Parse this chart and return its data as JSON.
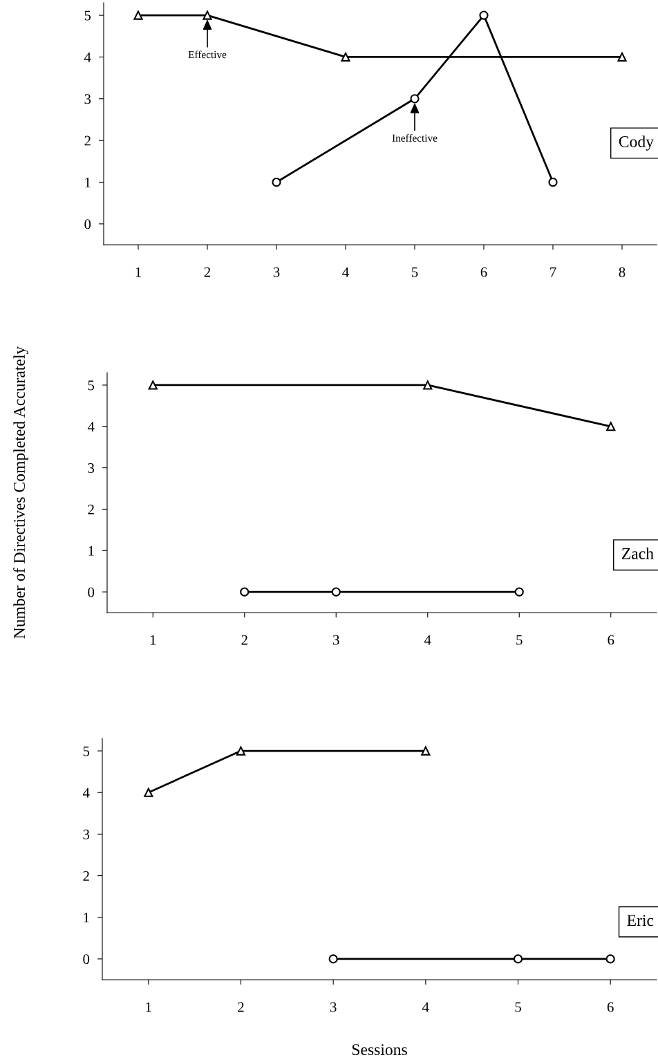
{
  "chart_data": [
    {
      "type": "line",
      "xlim": [
        0.5,
        8.5
      ],
      "xticks": [
        1,
        2,
        3,
        4,
        5,
        6,
        7,
        8
      ],
      "ylim": [
        -0.5,
        5.3
      ],
      "yticks": [
        0,
        1,
        2,
        3,
        4,
        5
      ],
      "grid": false,
      "legend": false,
      "series": [
        {
          "color": "#000000",
          "marker": "triangle",
          "x": [
            1,
            2,
            4,
            8
          ],
          "values": [
            5,
            5,
            4,
            4
          ]
        },
        {
          "color": "#000000",
          "marker": "circle",
          "x": [
            3,
            5,
            6,
            7
          ],
          "values": [
            1,
            3,
            5,
            1
          ]
        }
      ],
      "annotations": [
        {
          "text": "Effective",
          "x": 2,
          "y": 5
        },
        {
          "text": "Ineffective",
          "x": 5,
          "y": 3
        },
        "Cody"
      ]
    },
    {
      "type": "line",
      "xlim": [
        0.5,
        6.5
      ],
      "xticks": [
        1,
        2,
        3,
        4,
        5,
        6
      ],
      "ylim": [
        -0.5,
        5.3
      ],
      "yticks": [
        0,
        1,
        2,
        3,
        4,
        5
      ],
      "grid": false,
      "legend": false,
      "ylabel": "Number of Directives Completed Accurately",
      "series": [
        {
          "color": "#000000",
          "marker": "triangle",
          "x": [
            1,
            4,
            6
          ],
          "values": [
            5,
            5,
            4
          ]
        },
        {
          "color": "#000000",
          "marker": "circle",
          "x": [
            2,
            3,
            5
          ],
          "values": [
            0,
            0,
            0
          ]
        }
      ],
      "annotations": [
        "Zach"
      ]
    },
    {
      "type": "line",
      "xlim": [
        0.5,
        6.5
      ],
      "xticks": [
        1,
        2,
        3,
        4,
        5,
        6
      ],
      "ylim": [
        -0.5,
        5.3
      ],
      "yticks": [
        0,
        1,
        2,
        3,
        4,
        5
      ],
      "grid": false,
      "legend": false,
      "xlabel": "Sessions",
      "series": [
        {
          "color": "#000000",
          "marker": "triangle",
          "x": [
            1,
            2,
            4
          ],
          "values": [
            4,
            5,
            5
          ]
        },
        {
          "color": "#000000",
          "marker": "circle",
          "x": [
            3,
            5,
            6
          ],
          "values": [
            0,
            0,
            0
          ]
        }
      ],
      "annotations": [
        "Eric"
      ]
    }
  ]
}
